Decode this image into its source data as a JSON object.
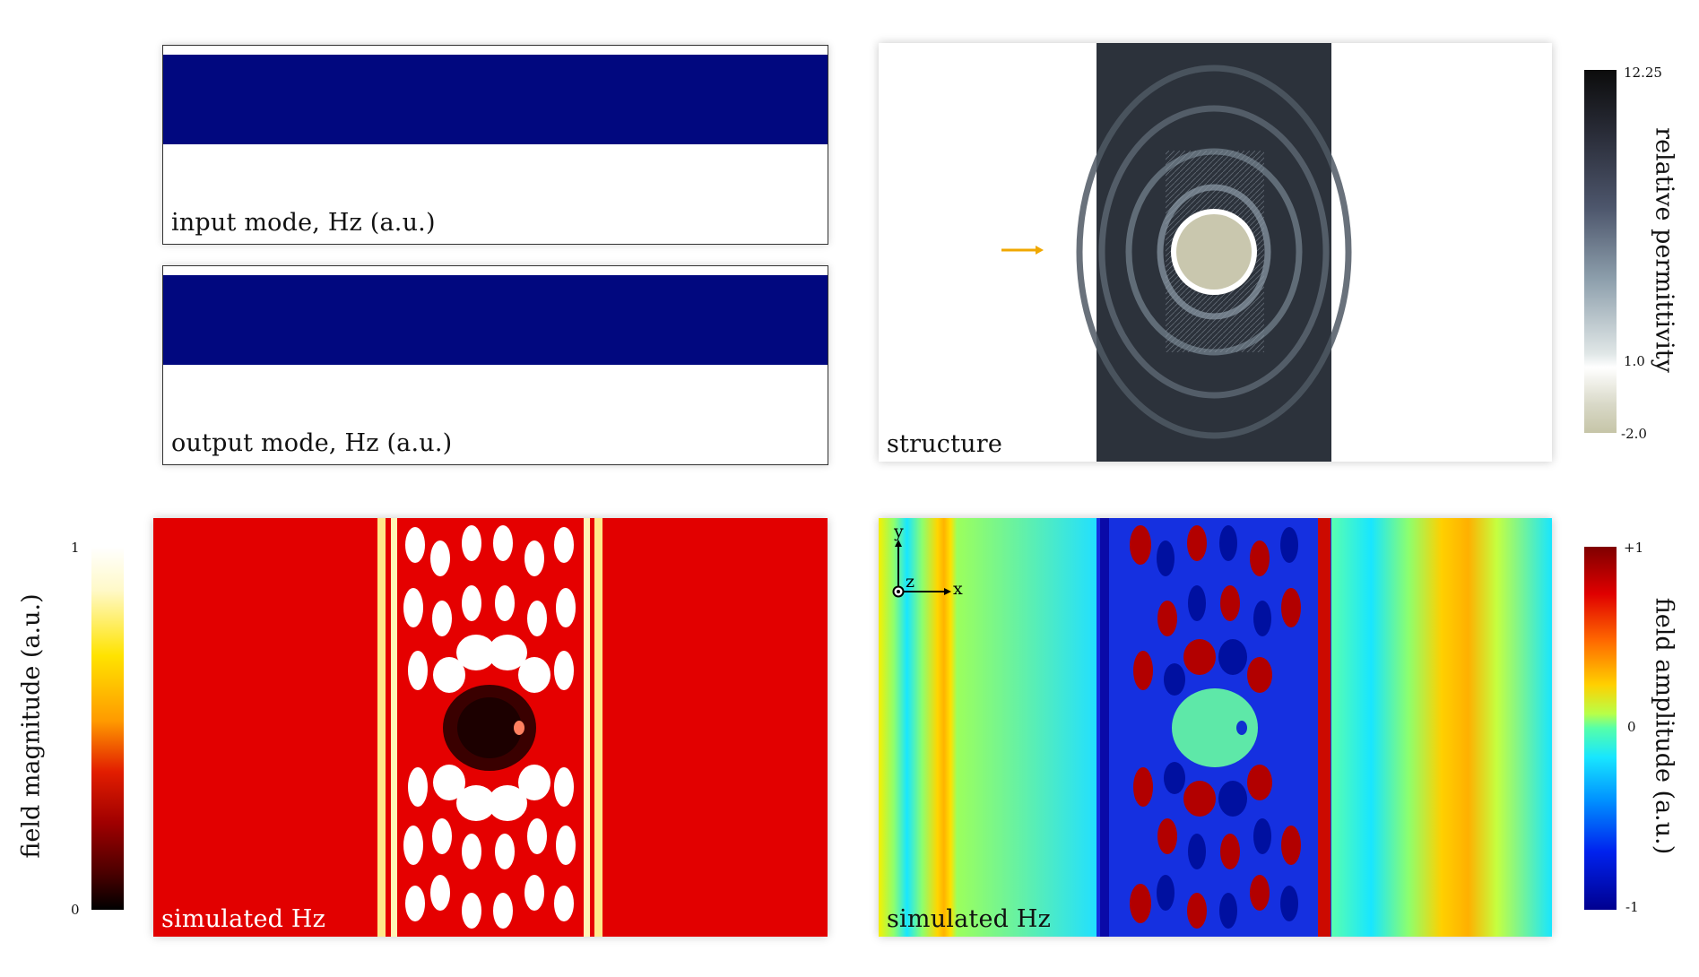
{
  "panels": {
    "input_mode": {
      "label": "input mode, Hz (a.u.)"
    },
    "output_mode": {
      "label": "output mode, Hz (a.u.)"
    },
    "structure": {
      "label": "structure"
    },
    "magnitude": {
      "label": "simulated Hz"
    },
    "amplitude": {
      "label": "simulated Hz"
    }
  },
  "colorbars": {
    "permittivity": {
      "title": "relative permittivity",
      "max": "12.25",
      "mid": "1.0",
      "min": "-2.0"
    },
    "magnitude": {
      "title": "field magnitude (a.u.)",
      "max": "1",
      "min": "0"
    },
    "amplitude": {
      "title": "field amplitude (a.u.)",
      "max": "+1",
      "mid": "0",
      "min": "-1"
    }
  },
  "axes": {
    "x": "x",
    "y": "y",
    "z": "z"
  },
  "colors": {
    "mode_band": "#01087f",
    "arrow": "#f0a800",
    "scatterer": "#c9c7ae",
    "magnitude_background": "#e20000",
    "device_dark": "#2c323b"
  }
}
